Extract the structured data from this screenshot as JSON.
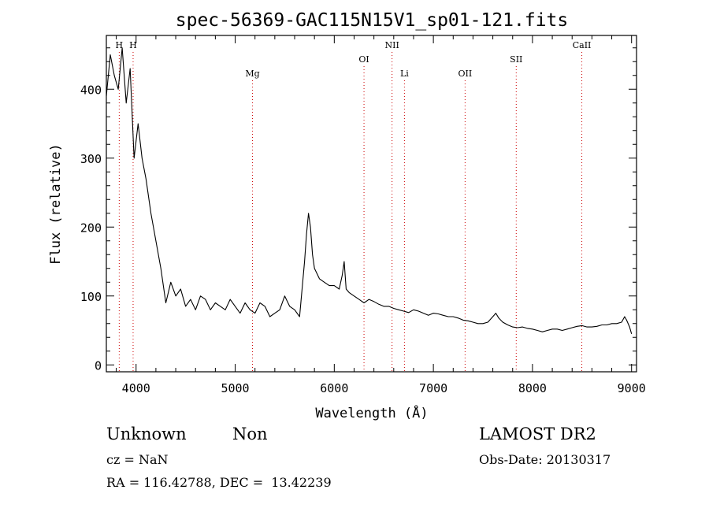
{
  "chart_data": {
    "type": "line",
    "title": "spec-56369-GAC115N15V1_sp01-121.fits",
    "xlabel": "Wavelength (Å)",
    "ylabel": "Flux (relative)",
    "xlim": [
      3700,
      9050
    ],
    "ylim": [
      -10,
      478
    ],
    "x_ticks": [
      4000,
      5000,
      6000,
      7000,
      8000,
      9000
    ],
    "x_tick_labels": [
      "4000",
      "5000",
      "6000",
      "7000",
      "8000",
      "9000"
    ],
    "y_ticks": [
      0,
      100,
      200,
      300,
      400
    ],
    "y_tick_labels": [
      "0",
      "100",
      "200",
      "300",
      "400"
    ],
    "grid": false,
    "line_color": "#000000",
    "marker_color": "#cc0000",
    "series": [
      {
        "x": [
          3700,
          3740,
          3780,
          3820,
          3860,
          3900,
          3940,
          3980,
          4020,
          4060,
          4100,
          4150,
          4200,
          4250,
          4300,
          4350,
          4400,
          4450,
          4500,
          4550,
          4600,
          4650,
          4700,
          4750,
          4800,
          4850,
          4900,
          4950,
          5000,
          5050,
          5100,
          5150,
          5200,
          5250,
          5300,
          5350,
          5400,
          5450,
          5500,
          5550,
          5600,
          5650,
          5700,
          5720,
          5740,
          5760,
          5780,
          5800,
          5850,
          5900,
          5950,
          6000,
          6050,
          6080,
          6100,
          6120,
          6150,
          6200,
          6250,
          6300,
          6350,
          6400,
          6450,
          6500,
          6550,
          6600,
          6650,
          6700,
          6750,
          6800,
          6850,
          6900,
          6950,
          7000,
          7050,
          7100,
          7150,
          7200,
          7250,
          7300,
          7350,
          7400,
          7450,
          7500,
          7550,
          7600,
          7630,
          7660,
          7700,
          7750,
          7800,
          7850,
          7900,
          7950,
          8000,
          8050,
          8100,
          8150,
          8200,
          8250,
          8300,
          8350,
          8400,
          8450,
          8500,
          8550,
          8600,
          8650,
          8700,
          8750,
          8800,
          8850,
          8900,
          8930,
          8950,
          8980,
          9000
        ],
        "y": [
          390,
          450,
          420,
          400,
          460,
          380,
          430,
          300,
          350,
          300,
          270,
          220,
          180,
          140,
          90,
          120,
          100,
          110,
          85,
          95,
          80,
          100,
          95,
          80,
          90,
          85,
          80,
          95,
          85,
          75,
          90,
          80,
          75,
          90,
          85,
          70,
          75,
          80,
          100,
          85,
          80,
          70,
          150,
          190,
          220,
          200,
          160,
          140,
          125,
          120,
          115,
          115,
          110,
          130,
          150,
          110,
          105,
          100,
          95,
          90,
          95,
          92,
          88,
          85,
          85,
          82,
          80,
          78,
          76,
          80,
          78,
          75,
          72,
          75,
          74,
          72,
          70,
          70,
          68,
          65,
          64,
          62,
          60,
          60,
          62,
          70,
          75,
          68,
          62,
          58,
          55,
          54,
          55,
          53,
          52,
          50,
          48,
          50,
          52,
          52,
          50,
          52,
          54,
          56,
          57,
          55,
          55,
          56,
          58,
          58,
          60,
          60,
          62,
          70,
          65,
          55,
          45
        ]
      }
    ],
    "markers": [
      {
        "label": "H",
        "x": 3830,
        "row": 1
      },
      {
        "label": "H",
        "x": 3970,
        "row": 1
      },
      {
        "label": "Mg",
        "x": 5175,
        "row": 3
      },
      {
        "label": "OI",
        "x": 6300,
        "row": 2
      },
      {
        "label": "NII",
        "x": 6583,
        "row": 1
      },
      {
        "label": "Li",
        "x": 6708,
        "row": 3
      },
      {
        "label": "OII",
        "x": 7320,
        "row": 3
      },
      {
        "label": "SII",
        "x": 7836,
        "row": 2
      },
      {
        "label": "CaII",
        "x": 8498,
        "row": 1
      }
    ]
  },
  "info": {
    "class": "Unknown",
    "subclass": "Non",
    "survey": "LAMOST DR2",
    "cz": "cz = NaN",
    "obs_date": "Obs-Date: 20130317",
    "coords": "RA = 116.42788, DEC =  13.42239"
  }
}
